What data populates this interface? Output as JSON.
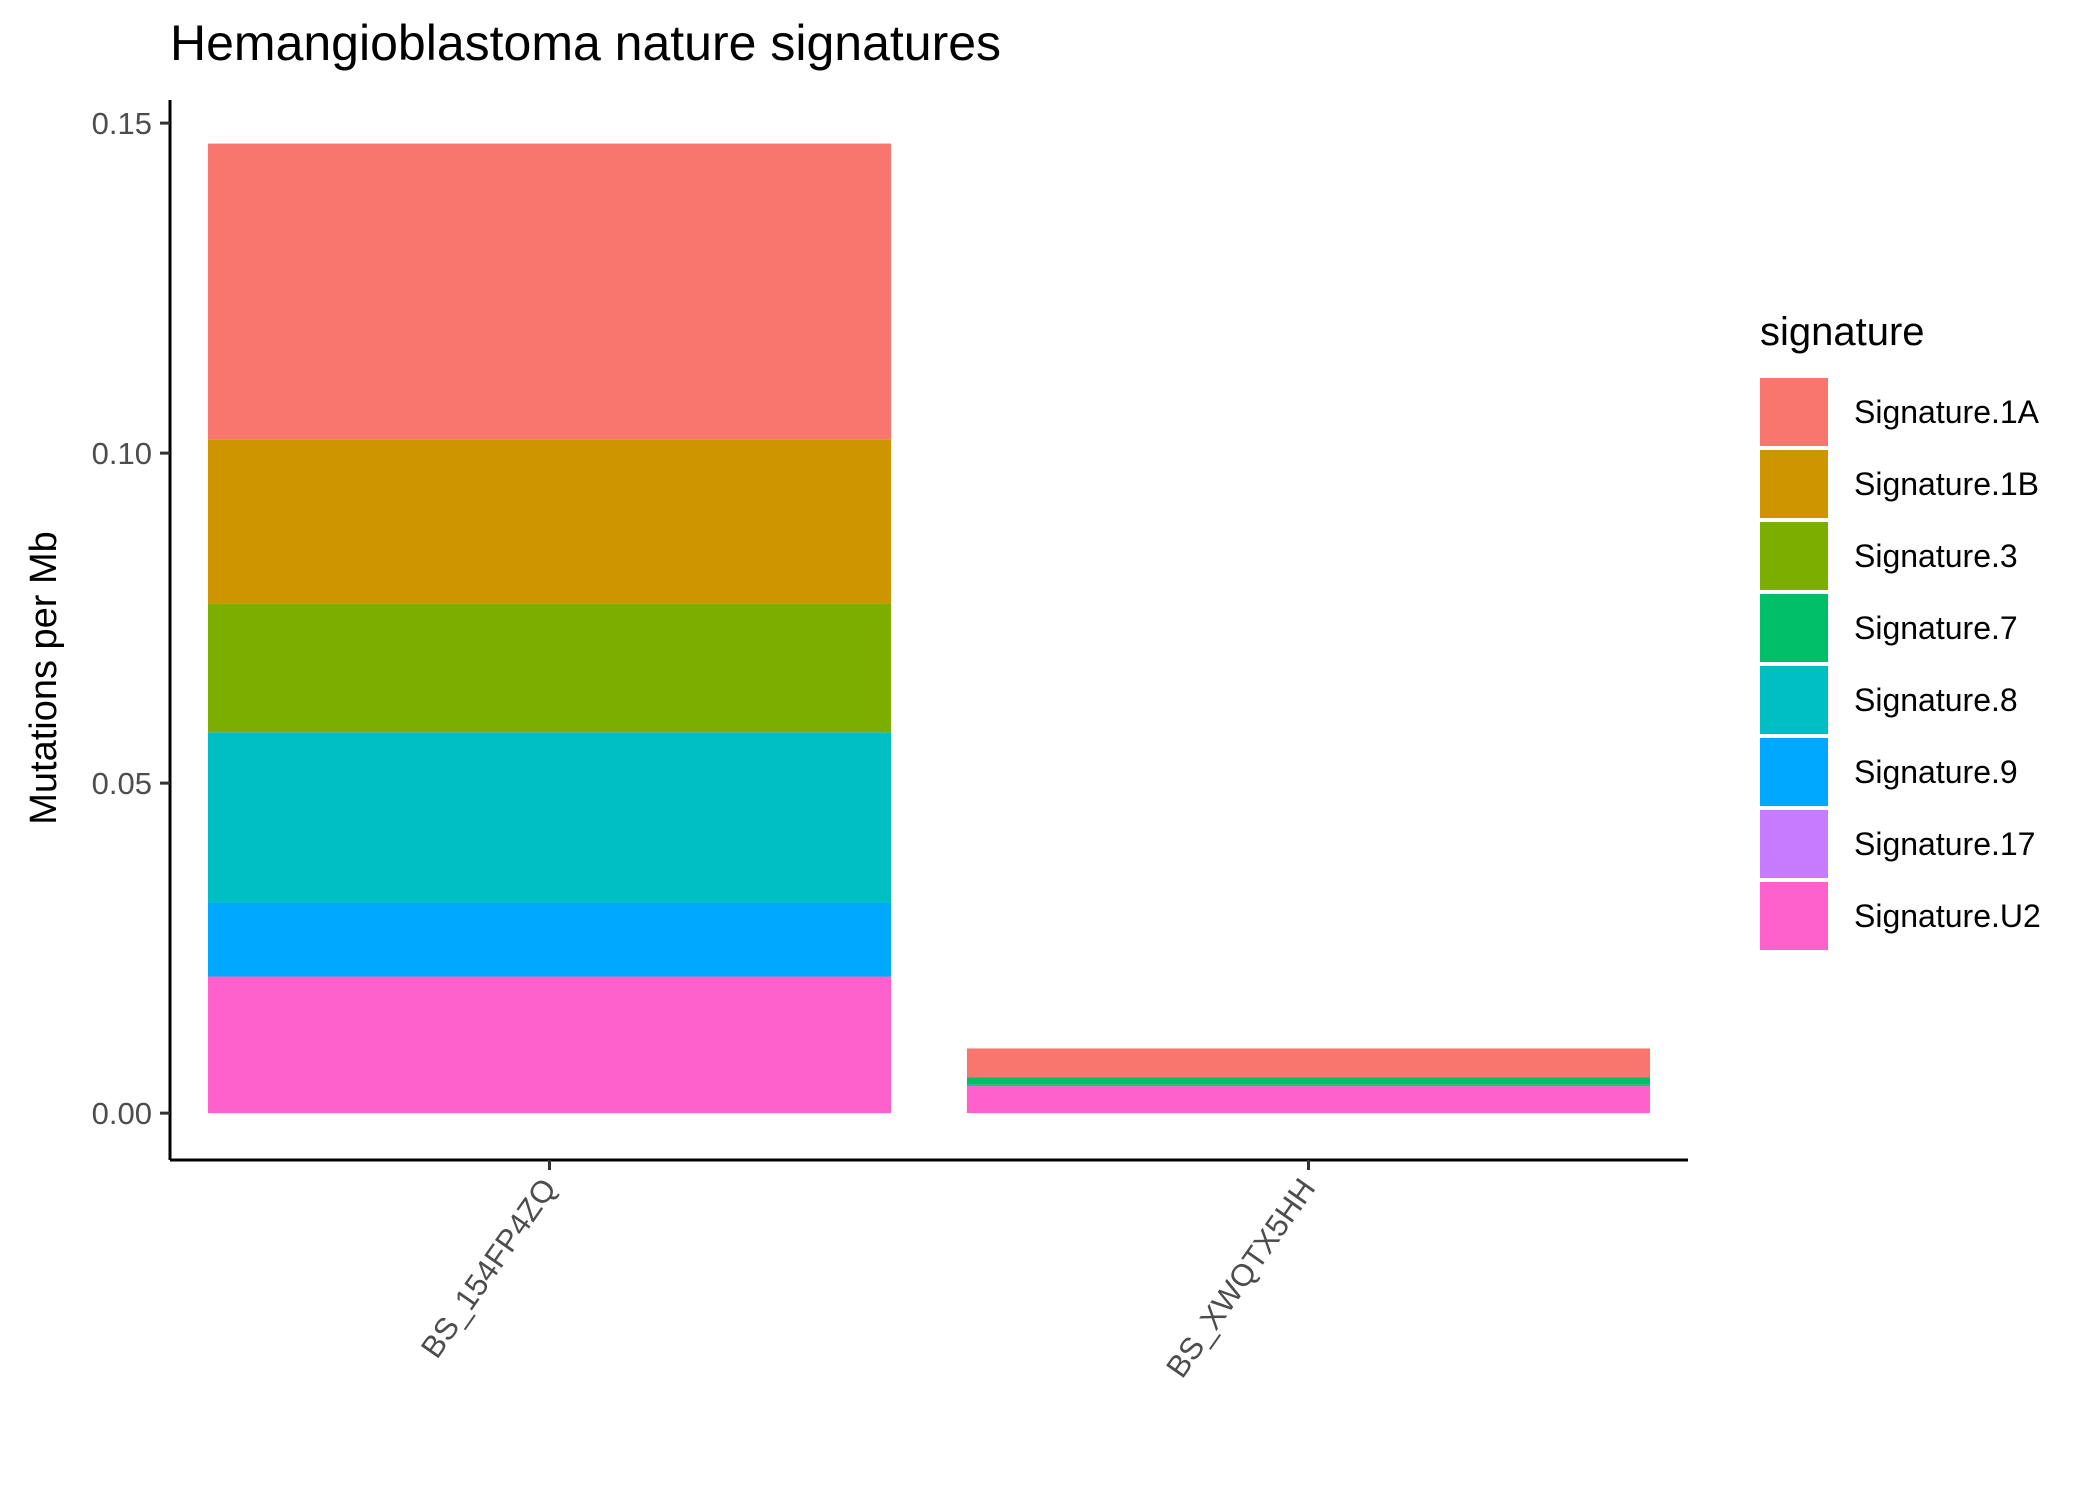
{
  "chart_data": {
    "type": "bar",
    "stacked": true,
    "title": "Hemangioblastoma nature signatures",
    "xlabel": "",
    "ylabel": "Mutations per Mb",
    "ylim": [
      -0.0071,
      0.1535
    ],
    "yticks": [
      0.0,
      0.05,
      0.1,
      0.15
    ],
    "ytick_labels": [
      "0.00",
      "0.05",
      "0.10",
      "0.15"
    ],
    "grid": false,
    "legend_position": "right",
    "legend_title": "signature",
    "categories": [
      "BS_154FP4ZQ",
      "BS_XWQTX5HH"
    ],
    "series": [
      {
        "name": "Signature.1A",
        "color": "#F8766D",
        "values": [
          0.0448,
          0.0044
        ]
      },
      {
        "name": "Signature.1B",
        "color": "#CD9600",
        "values": [
          0.0249,
          0.0
        ]
      },
      {
        "name": "Signature.3",
        "color": "#7CAE00",
        "values": [
          0.0195,
          0.0
        ]
      },
      {
        "name": "Signature.7",
        "color": "#00BE67",
        "values": [
          0.0,
          0.0011
        ]
      },
      {
        "name": "Signature.8",
        "color": "#00BFC4",
        "values": [
          0.0258,
          0.0002
        ]
      },
      {
        "name": "Signature.9",
        "color": "#00A9FF",
        "values": [
          0.0112,
          0.0
        ]
      },
      {
        "name": "Signature.17",
        "color": "#C77CFF",
        "values": [
          0.0,
          0.0
        ]
      },
      {
        "name": "Signature.U2",
        "color": "#FF61CC",
        "values": [
          0.0207,
          0.0041
        ]
      }
    ]
  }
}
